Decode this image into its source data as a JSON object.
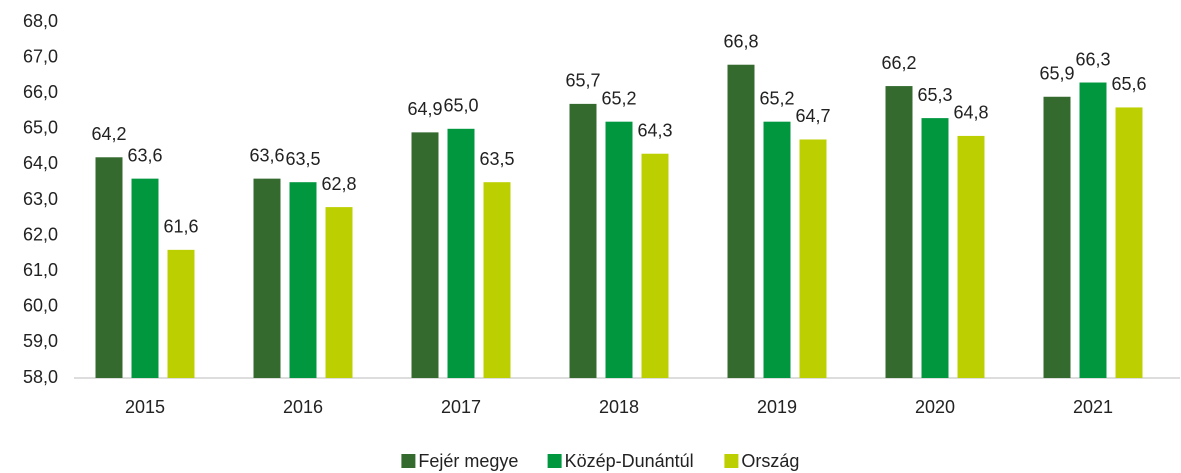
{
  "chart_data": {
    "type": "bar",
    "categories": [
      "2015",
      "2016",
      "2017",
      "2018",
      "2019",
      "2020",
      "2021"
    ],
    "series": [
      {
        "name": "Fejér megye",
        "color": "#356a2f",
        "values": [
          64.2,
          63.6,
          64.9,
          65.7,
          66.8,
          66.2,
          65.9
        ],
        "value_labels": [
          "64,2",
          "63,6",
          "64,9",
          "65,7",
          "66,8",
          "66,2",
          "65,9"
        ]
      },
      {
        "name": "Közép-Dunántúl",
        "color": "#00973f",
        "values": [
          63.6,
          63.5,
          65.0,
          65.2,
          65.2,
          65.3,
          66.3
        ],
        "value_labels": [
          "63,6",
          "63,5",
          "65,0",
          "65,2",
          "65,2",
          "65,3",
          "66,3"
        ]
      },
      {
        "name": "Ország",
        "color": "#bccf00",
        "values": [
          61.6,
          62.8,
          63.5,
          64.3,
          64.7,
          64.8,
          65.6
        ],
        "value_labels": [
          "61,6",
          "62,8",
          "63,5",
          "64,3",
          "64,7",
          "64,8",
          "65,6"
        ]
      }
    ],
    "ylim": [
      58,
      68
    ],
    "yticks": [
      {
        "value": 58,
        "label": "58,0"
      },
      {
        "value": 59,
        "label": "59,0"
      },
      {
        "value": 60,
        "label": "60,0"
      },
      {
        "value": 61,
        "label": "61,0"
      },
      {
        "value": 62,
        "label": "62,0"
      },
      {
        "value": 63,
        "label": "63,0"
      },
      {
        "value": 64,
        "label": "64,0"
      },
      {
        "value": 65,
        "label": "65,0"
      },
      {
        "value": 66,
        "label": "66,0"
      },
      {
        "value": 67,
        "label": "67,0"
      },
      {
        "value": 68,
        "label": "68,0"
      }
    ],
    "grid": false,
    "legend": "bottom"
  }
}
